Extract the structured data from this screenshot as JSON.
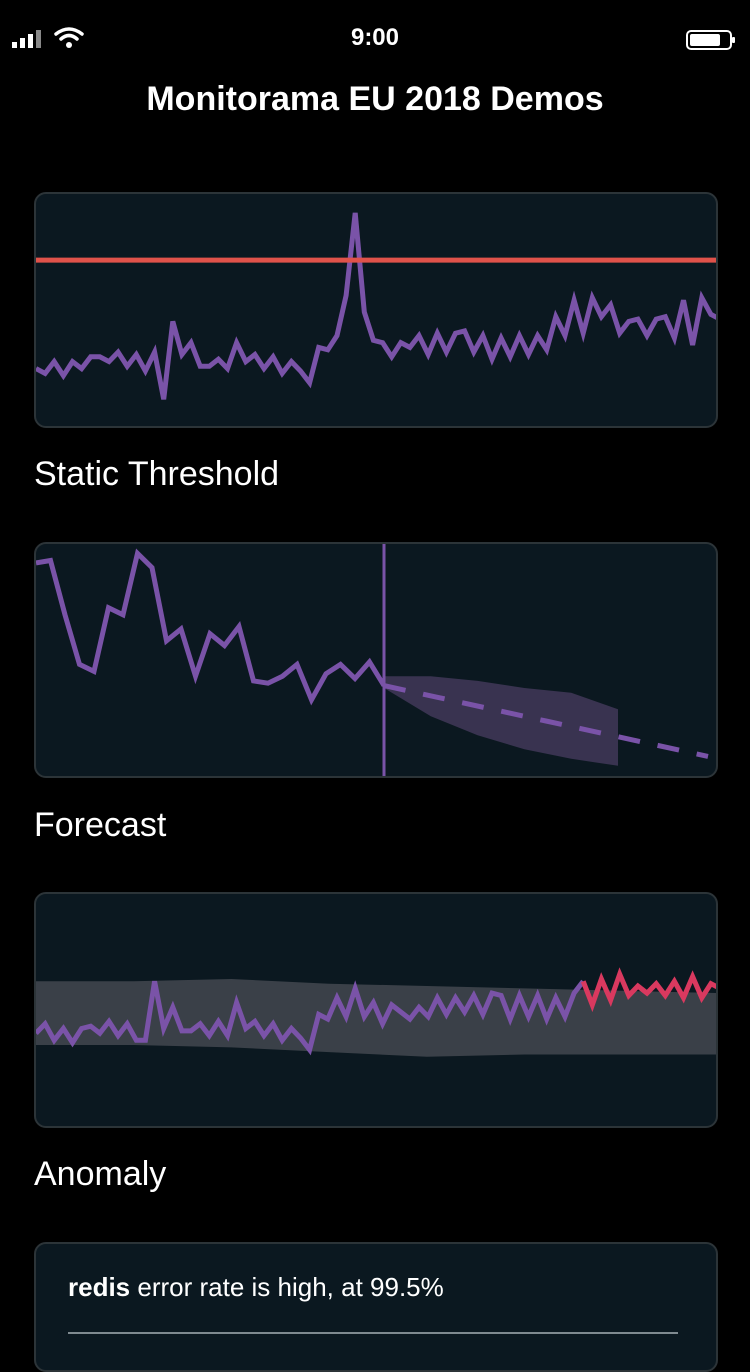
{
  "status_bar": {
    "time": "9:00"
  },
  "header": {
    "title": "Monitorama EU 2018 Demos"
  },
  "demos": [
    {
      "label": "Static Threshold"
    },
    {
      "label": "Forecast"
    },
    {
      "label": "Anomaly"
    }
  ],
  "alert": {
    "service": "redis",
    "message": " error rate is high, at 99.5%"
  },
  "colors": {
    "series": "#7a53a8",
    "threshold": "#e0524a",
    "anomaly": "#d9395f",
    "band": "#3a4048",
    "forecast_band": "#393350",
    "card_bg": "#0b1820"
  },
  "icons": [
    "signal-icon",
    "wifi-icon",
    "battery-icon"
  ],
  "chart_data": [
    {
      "type": "line",
      "title": "Static Threshold",
      "threshold": 0.72,
      "series": [
        {
          "values": [
            0.26,
            0.24,
            0.29,
            0.23,
            0.29,
            0.26,
            0.31,
            0.31,
            0.29,
            0.33,
            0.27,
            0.32,
            0.25,
            0.33,
            0.13,
            0.46,
            0.32,
            0.37,
            0.27,
            0.27,
            0.3,
            0.26,
            0.37,
            0.29,
            0.32,
            0.26,
            0.31,
            0.24,
            0.29,
            0.25,
            0.2,
            0.35,
            0.34,
            0.4,
            0.57,
            0.92,
            0.5,
            0.38,
            0.37,
            0.31,
            0.37,
            0.35,
            0.4,
            0.32,
            0.41,
            0.33,
            0.41,
            0.42,
            0.33,
            0.4,
            0.3,
            0.39,
            0.31,
            0.4,
            0.32,
            0.4,
            0.34,
            0.48,
            0.4,
            0.55,
            0.41,
            0.56,
            0.48,
            0.53,
            0.41,
            0.46,
            0.47,
            0.4,
            0.47,
            0.48,
            0.39,
            0.55,
            0.36,
            0.56,
            0.49,
            0.47
          ]
        }
      ]
    },
    {
      "type": "line",
      "title": "Forecast",
      "series": [
        {
          "values": [
            0.92,
            0.93,
            0.7,
            0.49,
            0.46,
            0.73,
            0.7,
            0.96,
            0.9,
            0.59,
            0.64,
            0.44,
            0.62,
            0.57,
            0.65,
            0.42,
            0.41,
            0.44,
            0.49,
            0.34,
            0.45,
            0.49,
            0.43,
            0.5,
            0.4
          ]
        }
      ],
      "forecast": [
        0.4,
        0.35,
        0.3,
        0.25,
        0.2,
        0.15,
        0.1
      ],
      "forecast_upper": [
        0.44,
        0.44,
        0.42,
        0.39,
        0.37,
        0.3
      ],
      "forecast_lower": [
        0.39,
        0.27,
        0.19,
        0.13,
        0.09,
        0.06
      ]
    },
    {
      "type": "line",
      "title": "Anomaly",
      "series": [
        {
          "values": [
            0.41,
            0.45,
            0.38,
            0.43,
            0.37,
            0.43,
            0.44,
            0.41,
            0.46,
            0.4,
            0.45,
            0.38,
            0.38,
            0.63,
            0.43,
            0.52,
            0.42,
            0.42,
            0.45,
            0.4,
            0.46,
            0.4,
            0.54,
            0.43,
            0.46,
            0.4,
            0.45,
            0.38,
            0.43,
            0.39,
            0.34,
            0.49,
            0.47,
            0.56,
            0.48,
            0.6,
            0.48,
            0.54,
            0.45,
            0.53,
            0.5,
            0.47,
            0.52,
            0.48,
            0.56,
            0.49,
            0.56,
            0.5,
            0.57,
            0.49,
            0.58,
            0.57,
            0.47,
            0.57,
            0.48,
            0.57,
            0.47,
            0.56,
            0.48,
            0.58,
            0.63,
            0.53,
            0.64,
            0.55,
            0.66,
            0.57,
            0.61,
            0.58,
            0.62,
            0.57,
            0.63,
            0.56,
            0.65,
            0.56,
            0.62,
            0.6
          ]
        }
      ],
      "band_upper": [
        0.63,
        0.63,
        0.64,
        0.62,
        0.61,
        0.6,
        0.59,
        0.58
      ],
      "band_lower": [
        0.36,
        0.36,
        0.35,
        0.33,
        0.31,
        0.32,
        0.32,
        0.32
      ],
      "anomaly_start": 60
    }
  ]
}
